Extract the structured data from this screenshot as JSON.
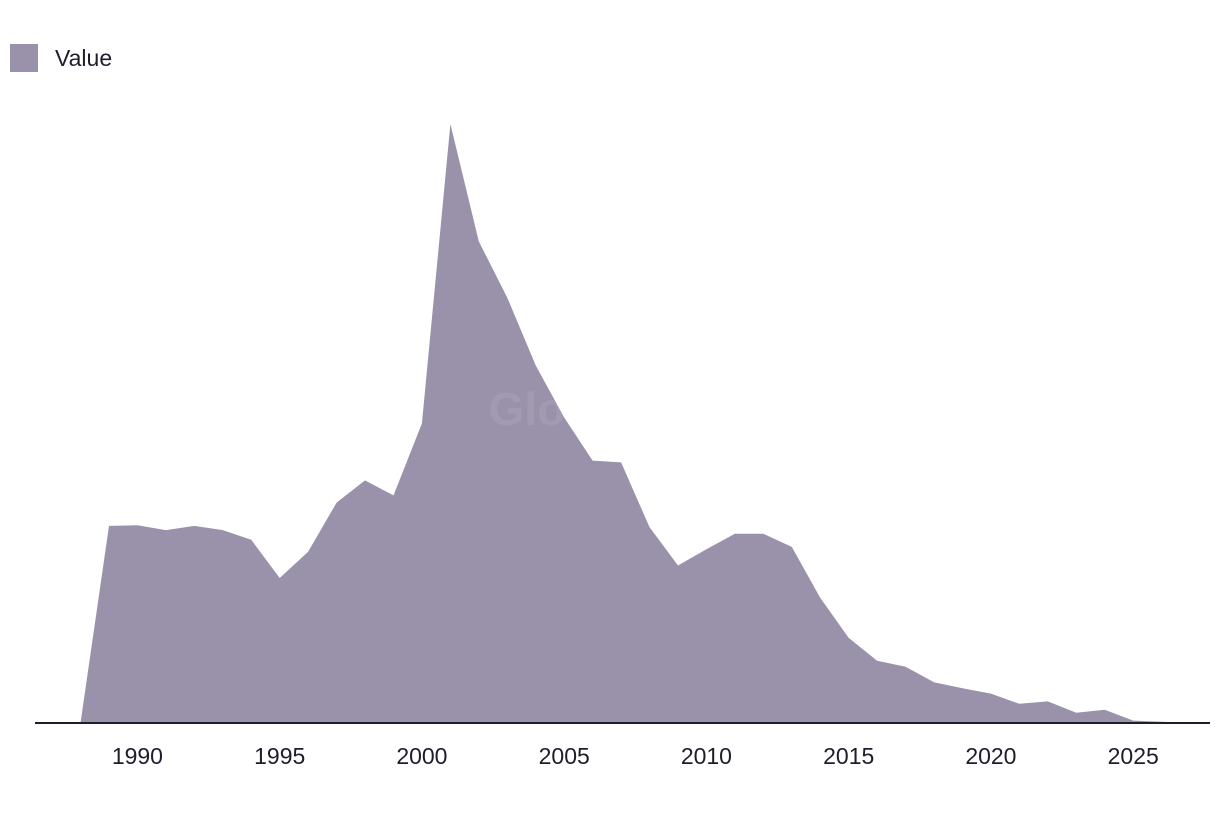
{
  "legend": {
    "label": "Value"
  },
  "watermark": "GlobalData",
  "colors": {
    "area": "#9a92ab",
    "axis": "#1f1d2b",
    "text": "#1f1d2b"
  },
  "chart_data": {
    "type": "area",
    "title": "",
    "xlabel": "",
    "ylabel": "",
    "xlim": [
      1986.4,
      2027.7
    ],
    "ylim": [
      0,
      100
    ],
    "grid": false,
    "legend_position": "top-left",
    "x_ticks": [
      1990,
      1995,
      2000,
      2005,
      2010,
      2015,
      2020,
      2025
    ],
    "series": [
      {
        "name": "Value",
        "x": [
          1988,
          1989,
          1990,
          1991,
          1992,
          1993,
          1994,
          1995,
          1996,
          1997,
          1998,
          1999,
          2000,
          2001,
          2002,
          2003,
          2004,
          2005,
          2006,
          2007,
          2008,
          2009,
          2010,
          2011,
          2012,
          2013,
          2014,
          2015,
          2016,
          2017,
          2018,
          2019,
          2020,
          2021,
          2022,
          2023,
          2024,
          2025,
          2026,
          2027
        ],
        "values": [
          0,
          32.9,
          33.0,
          32.2,
          32.9,
          32.2,
          30.6,
          24.2,
          28.6,
          36.8,
          40.5,
          38.0,
          50.0,
          100.0,
          80.4,
          71.0,
          59.7,
          51.0,
          43.8,
          43.5,
          32.7,
          26.3,
          29.0,
          31.6,
          31.6,
          29.4,
          20.9,
          14.2,
          10.4,
          9.4,
          6.8,
          5.8,
          4.9,
          3.2,
          3.6,
          1.7,
          2.2,
          0.4,
          0.2,
          0
        ]
      }
    ]
  }
}
